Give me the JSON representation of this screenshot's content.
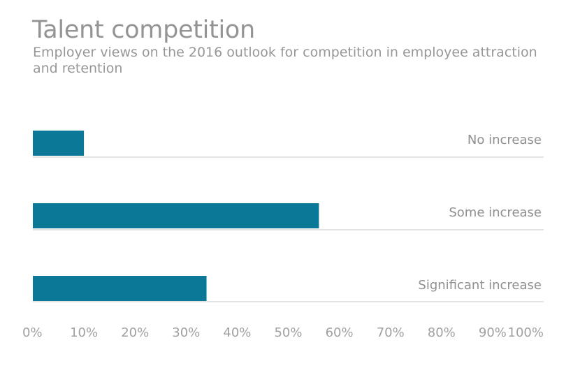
{
  "chart_data": {
    "type": "bar",
    "orientation": "horizontal",
    "title": "Talent competition",
    "subtitle": "Employer views on the 2016 outlook for competition in employee attraction and retention",
    "categories": [
      "No increase",
      "Some increase",
      "Significant increase"
    ],
    "values": [
      10,
      56,
      34
    ],
    "xlim": [
      0,
      100
    ],
    "xticks": [
      "0%",
      "10%",
      "20%",
      "30%",
      "40%",
      "50%",
      "60%",
      "70%",
      "80%",
      "90%",
      "100%"
    ],
    "grid": false,
    "colors": {
      "bar": "#0a7896",
      "baseline": "#c8c8c8"
    }
  }
}
